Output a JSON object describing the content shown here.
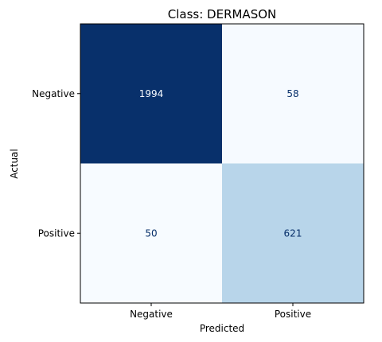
{
  "chart_data": {
    "type": "heatmap",
    "title": "Class: DERMASON",
    "xlabel": "Predicted",
    "ylabel": "Actual",
    "x_categories": [
      "Negative",
      "Positive"
    ],
    "y_categories": [
      "Negative",
      "Positive"
    ],
    "values": [
      [
        1994,
        58
      ],
      [
        50,
        621
      ]
    ],
    "colormap": "Blues",
    "color_low": "#f7fbff",
    "color_high": "#08306b",
    "text_light": "#f7fbff",
    "text_dark": "#08306b"
  }
}
